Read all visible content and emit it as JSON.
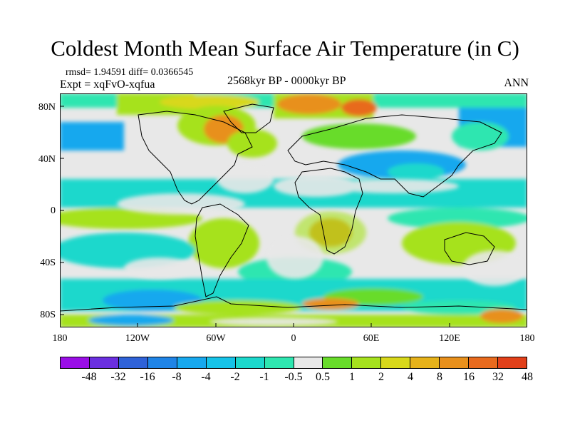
{
  "title": "Coldest Month Mean Surface Air Temperature (in C)",
  "stats": "rmsd= 1.94591  diff= 0.0366545",
  "experiment": "Expt = xqFvO-xqfua",
  "period": "2568kyr BP - 0000kyr BP",
  "season": "ANN",
  "y_ticks": [
    "80N",
    "40N",
    "0",
    "40S",
    "80S"
  ],
  "x_ticks": [
    "180",
    "120W",
    "60W",
    "0",
    "60E",
    "120E",
    "180"
  ],
  "colorbar": {
    "labels": [
      "-48",
      "-32",
      "-16",
      "-8",
      "-4",
      "-2",
      "-1",
      "-0.5",
      "0.5",
      "1",
      "2",
      "4",
      "8",
      "16",
      "32",
      "48"
    ],
    "colors": [
      "#9a0ee6",
      "#6b2fe0",
      "#2f62d8",
      "#1f84e6",
      "#17a8ee",
      "#16c3e8",
      "#1cd8cc",
      "#2ee6b0",
      "#e8e8e8",
      "#68dc2a",
      "#a6e21e",
      "#d8d81a",
      "#e6b21a",
      "#e8901c",
      "#e86a1e",
      "#e2401a"
    ]
  },
  "colors": {
    "land_outline": "#000000",
    "background": "#ffffff"
  }
}
